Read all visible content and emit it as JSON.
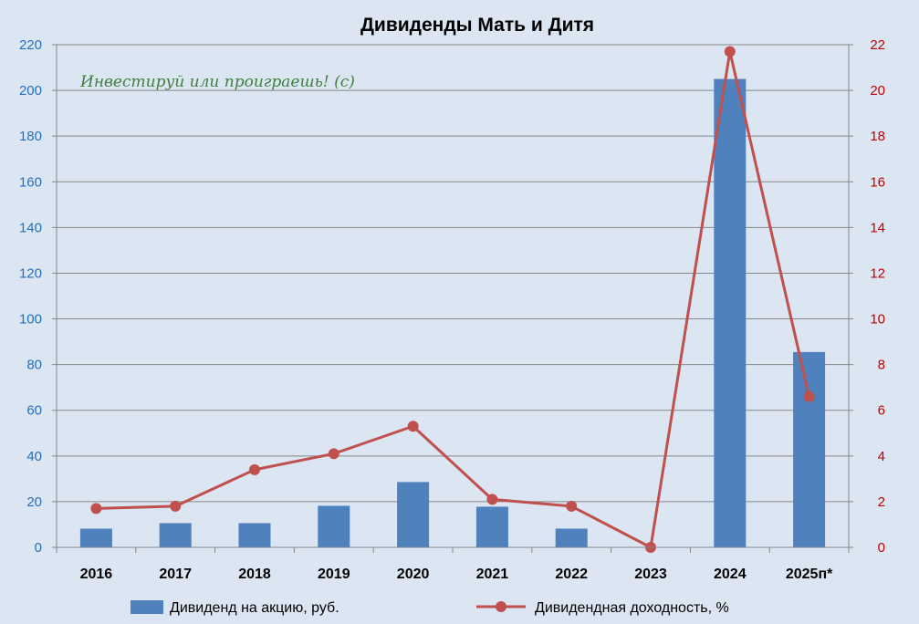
{
  "chart_data": {
    "type": "bar",
    "title": "Дивиденды Мать и Дитя",
    "annotation": "Инвестируй или проиграешь! (с)",
    "categories": [
      "2016",
      "2017",
      "2018",
      "2019",
      "2020",
      "2021",
      "2022",
      "2023",
      "2024",
      "2025п*"
    ],
    "series": [
      {
        "name": "Дивиденд на акцию, руб.",
        "type": "bar",
        "axis": "left",
        "color": "#4f81bd",
        "values": [
          8.2,
          10.6,
          10.6,
          18.2,
          28.6,
          17.8,
          8.2,
          0,
          205,
          85.5
        ]
      },
      {
        "name": "Дивидендная доходность, %",
        "type": "line",
        "axis": "right",
        "color": "#c0504d",
        "values": [
          1.7,
          1.8,
          3.4,
          4.1,
          5.3,
          2.1,
          1.8,
          0,
          21.7,
          6.6
        ]
      }
    ],
    "y_left": {
      "min": 0,
      "max": 220,
      "step": 20,
      "color": "#1f6fbf"
    },
    "y_right": {
      "min": 0,
      "max": 22,
      "step": 2,
      "color": "#c00000"
    },
    "grid": true,
    "legend": "bottom"
  }
}
